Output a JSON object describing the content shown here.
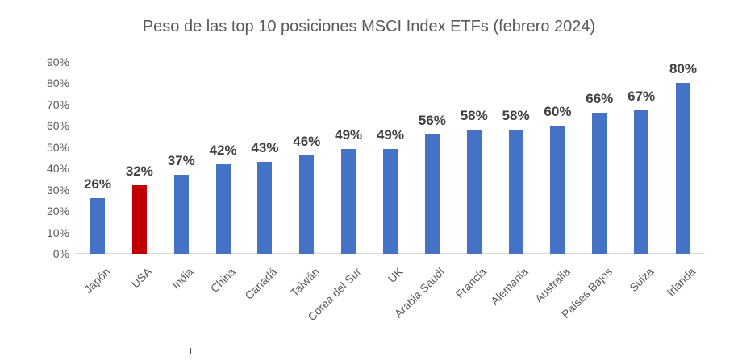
{
  "chart_data": {
    "type": "bar",
    "title": "Peso de las top 10 posiciones MSCI Index ETFs (febrero 2024)",
    "categories": [
      "Japón",
      "USA",
      "India",
      "China",
      "Canadá",
      "Taiwán",
      "Corea del Sur",
      "UK",
      "Arabia Saudí",
      "Francia",
      "Alemania",
      "Australia",
      "Países Bajos",
      "Suiza",
      "Irlanda"
    ],
    "values": [
      26,
      32,
      37,
      42,
      43,
      46,
      49,
      49,
      56,
      58,
      58,
      60,
      66,
      67,
      80
    ],
    "data_labels": [
      "26%",
      "32%",
      "37%",
      "42%",
      "43%",
      "46%",
      "49%",
      "49%",
      "56%",
      "58%",
      "58%",
      "60%",
      "66%",
      "67%",
      "80%"
    ],
    "highlight_index": 1,
    "highlight_category": "USA",
    "xlabel": "",
    "ylabel": "",
    "ylim": [
      0,
      90
    ],
    "ytick_step": 10,
    "ytick_labels": [
      "0%",
      "10%",
      "20%",
      "30%",
      "40%",
      "50%",
      "60%",
      "70%",
      "80%",
      "90%"
    ],
    "grid": false,
    "legend": false,
    "colors": {
      "bar": "#4472C4",
      "highlight": "#C00000",
      "title_text": "#595959",
      "axis_text": "#595959",
      "data_label_text": "#404040",
      "baseline": "#D9D9D9"
    }
  }
}
